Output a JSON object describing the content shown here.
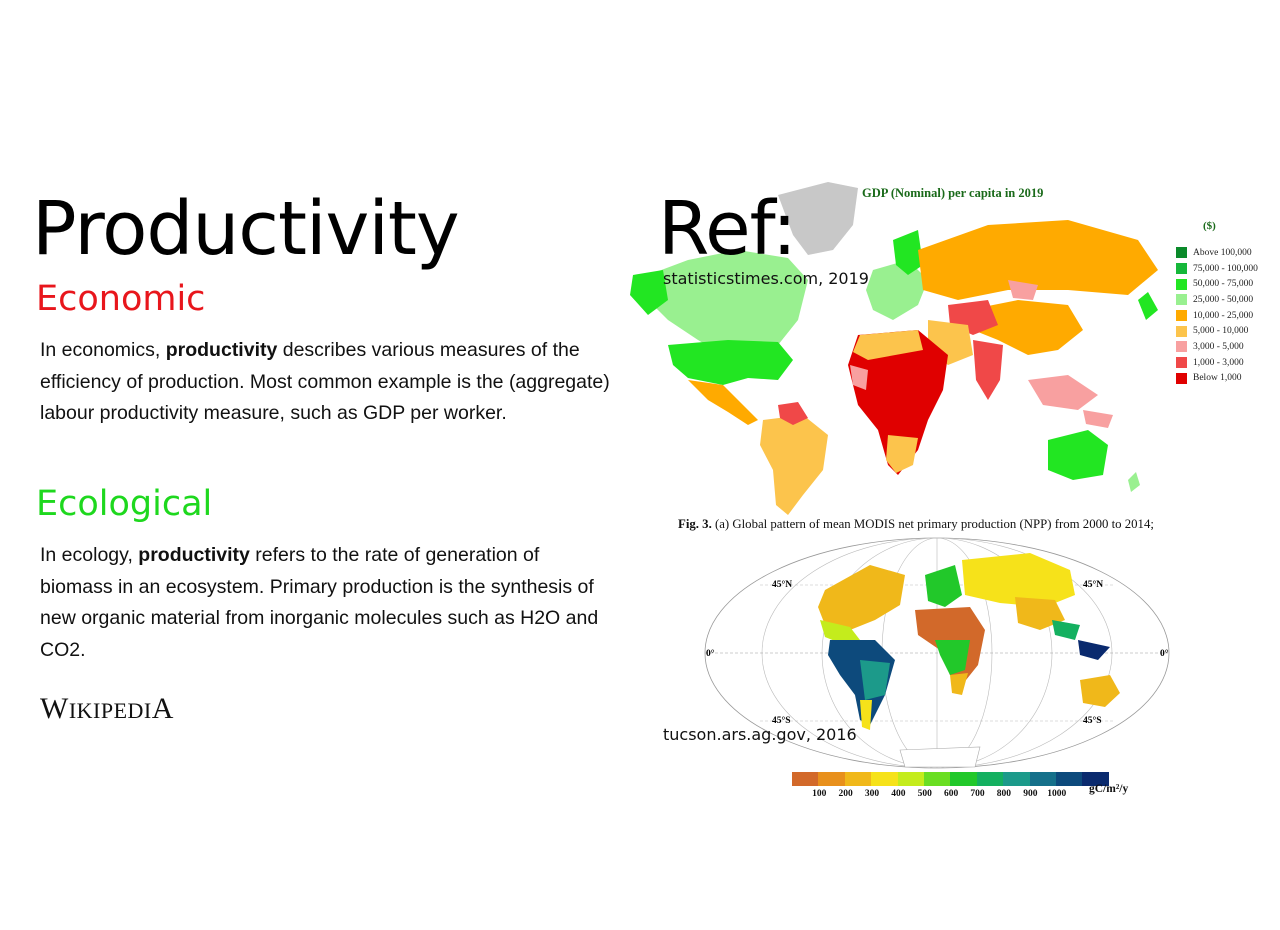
{
  "slide": {
    "title": "Productivity",
    "ref_title": "Ref:",
    "economic": {
      "heading": "Economic",
      "text_before": "In economics, ",
      "bold": "productivity",
      "text_after": " describes various measures of the efficiency of production. Most common example is the (aggregate) labour productivity measure, such as GDP per worker."
    },
    "ecological": {
      "heading": "Ecological",
      "text_before": "In ecology, ",
      "bold": "productivity",
      "text_after": " refers to the rate of generation of biomass in an ecosystem. Primary production is the synthesis of new organic material from inorganic molecules such as H2O and CO2."
    },
    "wikipedia_logo": "Wikipedia"
  },
  "gdp_figure": {
    "title": "GDP (Nominal) per capita in 2019",
    "unit": "($)",
    "legend": [
      {
        "label": "Above 100,000",
        "color": "#0a8a2a"
      },
      {
        "label": "75,000 - 100,000",
        "color": "#16b83a"
      },
      {
        "label": "50,000 - 75,000",
        "color": "#22e622"
      },
      {
        "label": "25,000 - 50,000",
        "color": "#99f090"
      },
      {
        "label": "10,000 - 25,000",
        "color": "#ffaa00"
      },
      {
        "label": "5,000 - 10,000",
        "color": "#fcc44c"
      },
      {
        "label": "3,000 - 5,000",
        "color": "#f8a0a0"
      },
      {
        "label": "1,000 - 3,000",
        "color": "#f04848"
      },
      {
        "label": "Below 1,000",
        "color": "#e00000"
      }
    ],
    "source": "statisticstimes.com, 2019"
  },
  "npp_figure": {
    "caption_bold": "Fig. 3.",
    "caption_rest": " (a) Global pattern of mean MODIS net primary production (NPP) from 2000 to 2014;",
    "lat_labels": {
      "n45": "45°N",
      "eq": "0°",
      "s45": "45°S"
    },
    "scale_colors": [
      "#d2692a",
      "#e8901c",
      "#f0b81a",
      "#f6e21a",
      "#c4ec1c",
      "#6ade22",
      "#22c82a",
      "#14b060",
      "#1c9a8a",
      "#15708a",
      "#0d4a7c",
      "#0a2a6e"
    ],
    "scale_ticks": [
      "100",
      "200",
      "300",
      "400",
      "500",
      "600",
      "700",
      "800",
      "900",
      "1000"
    ],
    "unit": "gC/m²/y",
    "source": "tucson.ars.ag.gov, 2016"
  }
}
